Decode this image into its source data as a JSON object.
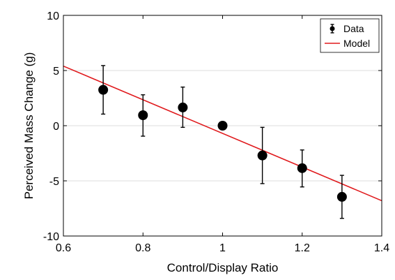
{
  "chart_data": {
    "type": "scatter",
    "title": "",
    "xlabel": "Control/Display Ratio",
    "ylabel": "Perceived Mass Change (g)",
    "xlim": [
      0.6,
      1.4
    ],
    "ylim": [
      -10,
      10
    ],
    "xticks": [
      0.6,
      0.8,
      1.0,
      1.2,
      1.4
    ],
    "xtick_labels": [
      "0.6",
      "0.8",
      "1",
      "1.2",
      "1.4"
    ],
    "yticks": [
      -10,
      -5,
      0,
      5,
      10
    ],
    "ytick_labels": [
      "-10",
      "-5",
      "0",
      "5",
      "10"
    ],
    "grid": {
      "x": false,
      "y": true
    },
    "legend": {
      "position": "top-right",
      "entries": [
        "Data",
        "Model"
      ]
    },
    "series": [
      {
        "name": "Data",
        "type": "scatter",
        "color": "#000000",
        "x": [
          0.7,
          0.8,
          0.9,
          1.0,
          1.1,
          1.2,
          1.3
        ],
        "y": [
          3.25,
          0.95,
          1.65,
          0.0,
          -2.7,
          -3.85,
          -6.45
        ],
        "err_low": [
          1.05,
          -0.95,
          -0.15,
          0.0,
          -5.25,
          -5.55,
          -8.4
        ],
        "err_high": [
          5.45,
          2.8,
          3.5,
          0.0,
          -0.15,
          -2.2,
          -4.5
        ]
      },
      {
        "name": "Model",
        "type": "line",
        "color": "#e0191c",
        "x": [
          0.6,
          1.4
        ],
        "y": [
          5.4,
          -6.8
        ]
      }
    ]
  }
}
